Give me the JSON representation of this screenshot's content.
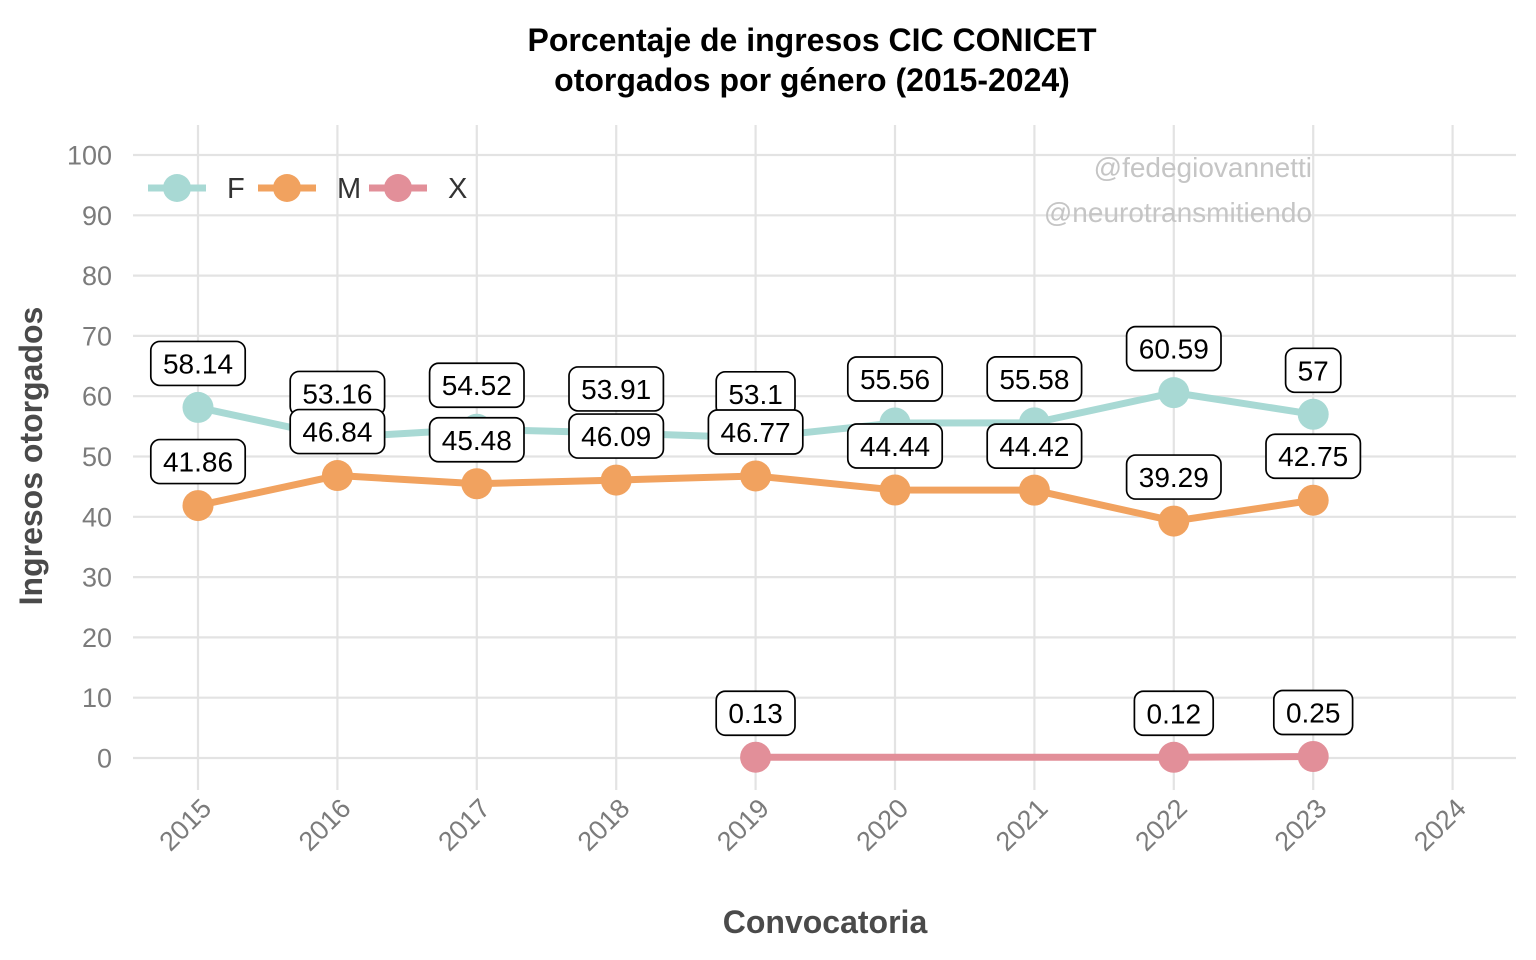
{
  "title": {
    "line1": "Porcentaje de ingresos CIC CONICET",
    "line2": "otorgados por género (2015-2024)"
  },
  "watermarks": [
    "@fedegiovannetti",
    "@neurotransmitiendo"
  ],
  "chart_data": {
    "type": "line",
    "title": "Porcentaje de ingresos CIC CONICET otorgados por género (2015-2024)",
    "xlabel": "Convocatoria",
    "ylabel": "Ingresos otorgados",
    "x_ticks": [
      2015,
      2016,
      2017,
      2018,
      2019,
      2020,
      2021,
      2022,
      2023,
      2024
    ],
    "y_ticks": [
      0,
      10,
      20,
      30,
      40,
      50,
      60,
      70,
      80,
      90,
      100
    ],
    "ylim": [
      0,
      100
    ],
    "xlim": [
      2015,
      2024
    ],
    "grid": true,
    "point_labels": true,
    "legend_position": "top-left-inside",
    "series": [
      {
        "name": "F",
        "color": "#a8d9d4",
        "x": [
          2015,
          2016,
          2017,
          2018,
          2019,
          2020,
          2021,
          2022,
          2023
        ],
        "values": [
          58.14,
          53.16,
          54.52,
          53.91,
          53.1,
          55.56,
          55.58,
          60.59,
          57
        ]
      },
      {
        "name": "M",
        "color": "#f1a25f",
        "x": [
          2015,
          2016,
          2017,
          2018,
          2019,
          2020,
          2021,
          2022,
          2023
        ],
        "values": [
          41.86,
          46.84,
          45.48,
          46.09,
          46.77,
          44.44,
          44.42,
          39.29,
          42.75
        ]
      },
      {
        "name": "X",
        "color": "#e28f99",
        "x": [
          2019,
          2022,
          2023
        ],
        "values": [
          0.13,
          0.12,
          0.25
        ]
      }
    ]
  },
  "style": {
    "grid_color": "#e3e3e3",
    "tick_color": "#7b7b7b",
    "axis_title_color": "#4a4a4a",
    "watermark_color": "#c5c5c5",
    "label_box_fill": "#ffffff",
    "label_box_border": "#000000"
  }
}
